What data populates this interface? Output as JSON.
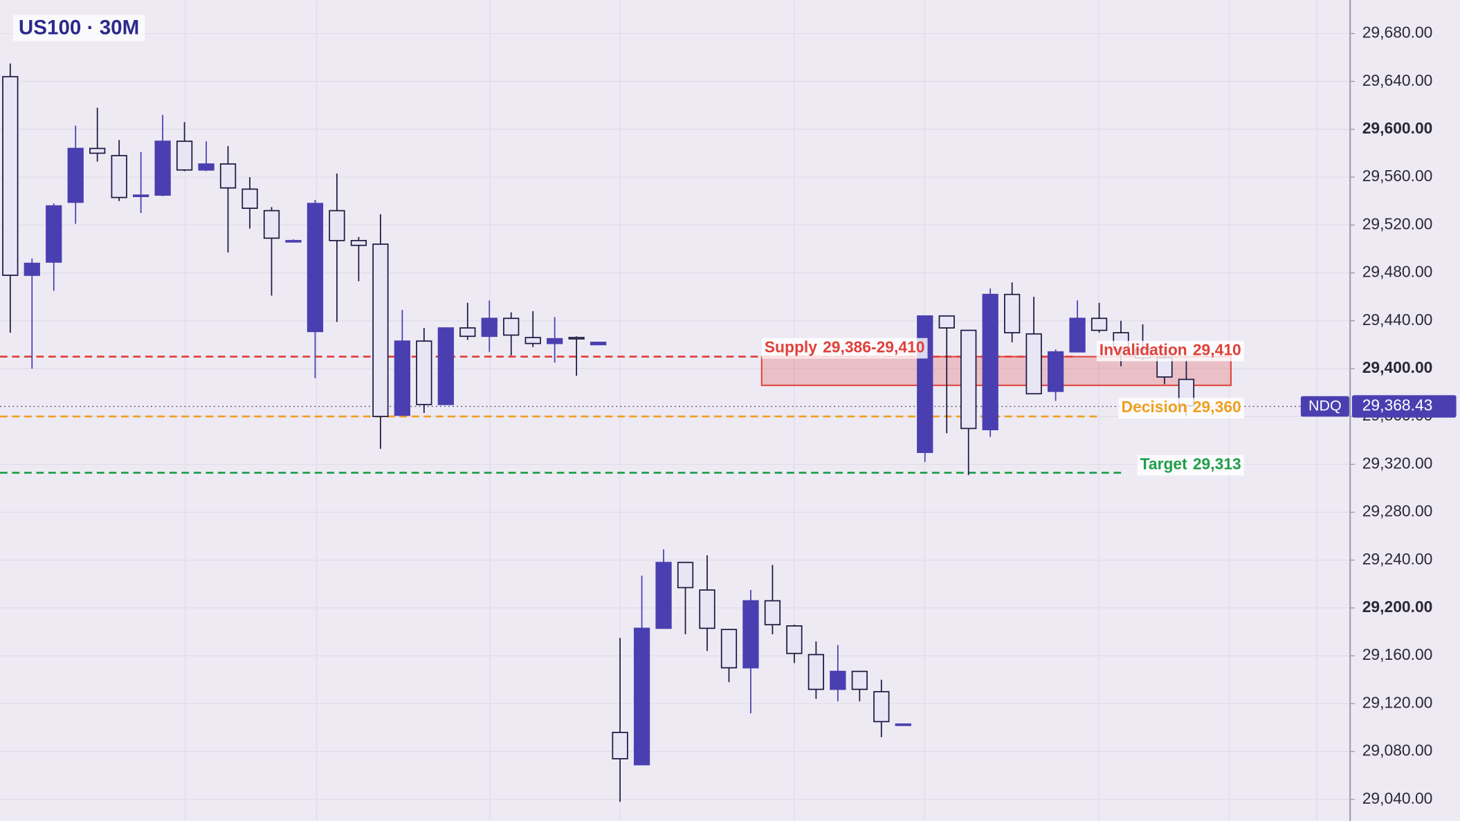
{
  "chart_data": {
    "type": "candlestick",
    "title": "US100 · 30M",
    "open": [
      29644,
      29478,
      29489,
      29539,
      29584,
      29578,
      29544,
      29545,
      29590,
      29566,
      29571,
      29550,
      29532,
      29507,
      29431,
      29532,
      29507,
      29504,
      29361,
      29423,
      29370,
      29434,
      29427,
      29442,
      29426,
      29421,
      29426,
      29420,
      29096,
      29069,
      29183,
      29238,
      29215,
      29182,
      29150,
      29206,
      29185,
      29161,
      29132,
      29147,
      29130,
      29103,
      29330,
      29444,
      29432,
      29349,
      29462,
      29429,
      29381,
      29414,
      29442,
      29430,
      29416,
      29409,
      29391
    ],
    "high": [
      29655,
      29492,
      29538,
      29603,
      29618,
      29591,
      29581,
      29612,
      29606,
      29590,
      29586,
      29560,
      29535,
      29508,
      29541,
      29563,
      29510,
      29529,
      29449,
      29434,
      29434,
      29455,
      29457,
      29447,
      29448,
      29443,
      29427,
      29422,
      29175,
      29227,
      29249,
      29238,
      29244,
      29182,
      29215,
      29236,
      29186,
      29172,
      29169,
      29147,
      29140,
      29103,
      29444,
      29444,
      29432,
      29467,
      29472,
      29460,
      29416,
      29457,
      29455,
      29440,
      29437,
      29416,
      29407
    ],
    "low": [
      29430,
      29400,
      29465,
      29521,
      29573,
      29540,
      29530,
      29544,
      29565,
      29565,
      29497,
      29517,
      29461,
      29507,
      29392,
      29439,
      29473,
      29333,
      29361,
      29363,
      29370,
      29424,
      29414,
      29411,
      29418,
      29405,
      29394,
      29420,
      29038,
      29069,
      29183,
      29178,
      29164,
      29138,
      29112,
      29178,
      29154,
      29124,
      29122,
      29122,
      29092,
      29103,
      29322,
      29346,
      29311,
      29343,
      29422,
      29379,
      29373,
      29414,
      29430,
      29402,
      29407,
      29387,
      29360
    ],
    "close": [
      29478,
      29488,
      29536,
      29584,
      29580,
      29543,
      29545,
      29590,
      29566,
      29571,
      29551,
      29534,
      29509,
      29507,
      29538,
      29507,
      29503,
      29360,
      29423,
      29370,
      29434,
      29427,
      29442,
      29428,
      29421,
      29425,
      29425,
      29422,
      29074,
      29183,
      29238,
      29217,
      29183,
      29150,
      29206,
      29186,
      29162,
      29132,
      29147,
      29132,
      29105,
      29103,
      29444,
      29434,
      29350,
      29462,
      29430,
      29379,
      29414,
      29442,
      29432,
      29416,
      29409,
      29393,
      29369
    ],
    "up_color": "#4a3fb0",
    "down_color": "#e8e6f5",
    "outline_color": "#1c1a40",
    "ylim": [
      29022,
      29708
    ],
    "yticks": [
      {
        "value": 29040,
        "label": "29,040.00"
      },
      {
        "value": 29080,
        "label": "29,080.00"
      },
      {
        "value": 29120,
        "label": "29,120.00"
      },
      {
        "value": 29160,
        "label": "29,160.00"
      },
      {
        "value": 29200,
        "label": "29,200.00"
      },
      {
        "value": 29240,
        "label": "29,240.00"
      },
      {
        "value": 29280,
        "label": "29,280.00"
      },
      {
        "value": 29320,
        "label": "29,320.00"
      },
      {
        "value": 29360,
        "label": "29,360.00"
      },
      {
        "value": 29400,
        "label": "29,400.00"
      },
      {
        "value": 29440,
        "label": "29,440.00"
      },
      {
        "value": 29480,
        "label": "29,480.00"
      },
      {
        "value": 29520,
        "label": "29,520.00"
      },
      {
        "value": 29560,
        "label": "29,560.00"
      },
      {
        "value": 29600,
        "label": "29,600.00"
      },
      {
        "value": 29640,
        "label": "29,640.00"
      },
      {
        "value": 29680,
        "label": "29,680.00"
      }
    ],
    "grid": true,
    "zone": {
      "name": "Supply",
      "range_label": "29,386-29,410",
      "low": 29386,
      "high": 29410,
      "color": "#e0413a"
    },
    "levels": [
      {
        "name": "Invalidation",
        "value": 29410,
        "value_label": "29,410",
        "color": "#e0413a"
      },
      {
        "name": "Decision",
        "value": 29360,
        "value_label": "29,360",
        "color": "#f0a020"
      },
      {
        "name": "Target",
        "value": 29313,
        "value_label": "29,313",
        "color": "#1f9e4a"
      }
    ],
    "last_price": {
      "name": "NDQ",
      "value": 29368.43,
      "label": "29,368.43",
      "color": "#4a3fb0"
    }
  }
}
